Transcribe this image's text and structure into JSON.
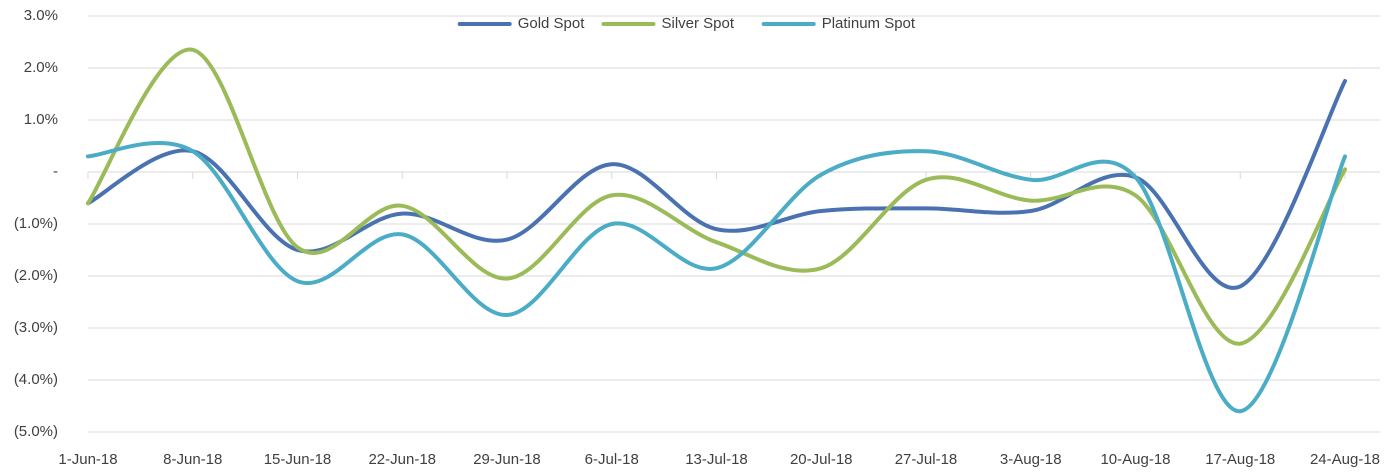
{
  "chart_data": {
    "type": "line",
    "categories": [
      "1-Jun-18",
      "8-Jun-18",
      "15-Jun-18",
      "22-Jun-18",
      "29-Jun-18",
      "6-Jul-18",
      "13-Jul-18",
      "20-Jul-18",
      "27-Jul-18",
      "3-Aug-18",
      "10-Aug-18",
      "17-Aug-18",
      "24-Aug-18"
    ],
    "series": [
      {
        "name": "Gold Spot",
        "color": "#4a72b0",
        "values": [
          -0.6,
          0.4,
          -1.5,
          -0.8,
          -1.3,
          0.15,
          -1.1,
          -0.75,
          -0.7,
          -0.75,
          -0.1,
          -2.2,
          1.75
        ]
      },
      {
        "name": "Silver Spot",
        "color": "#9bbb59",
        "values": [
          -0.6,
          2.35,
          -1.45,
          -0.65,
          -2.05,
          -0.45,
          -1.35,
          -1.85,
          -0.15,
          -0.55,
          -0.45,
          -3.3,
          0.05
        ]
      },
      {
        "name": "Platinum Spot",
        "color": "#4bacc6",
        "values": [
          0.3,
          0.4,
          -2.1,
          -1.2,
          -2.75,
          -1.0,
          -1.85,
          -0.05,
          0.4,
          -0.15,
          -0.1,
          -4.6,
          0.3
        ]
      }
    ],
    "ylim": [
      -5,
      3
    ],
    "yticks": [
      {
        "value": -5,
        "label": "(5.0%)"
      },
      {
        "value": -4,
        "label": "(4.0%)"
      },
      {
        "value": -3,
        "label": "(3.0%)"
      },
      {
        "value": -2,
        "label": "(2.0%)"
      },
      {
        "value": -1,
        "label": "(1.0%)"
      },
      {
        "value": 0,
        "label": "-"
      },
      {
        "value": 1,
        "label": "1.0%"
      },
      {
        "value": 2,
        "label": "2.0%"
      },
      {
        "value": 3,
        "label": "3.0%"
      }
    ],
    "grid": true,
    "legend": "top"
  }
}
